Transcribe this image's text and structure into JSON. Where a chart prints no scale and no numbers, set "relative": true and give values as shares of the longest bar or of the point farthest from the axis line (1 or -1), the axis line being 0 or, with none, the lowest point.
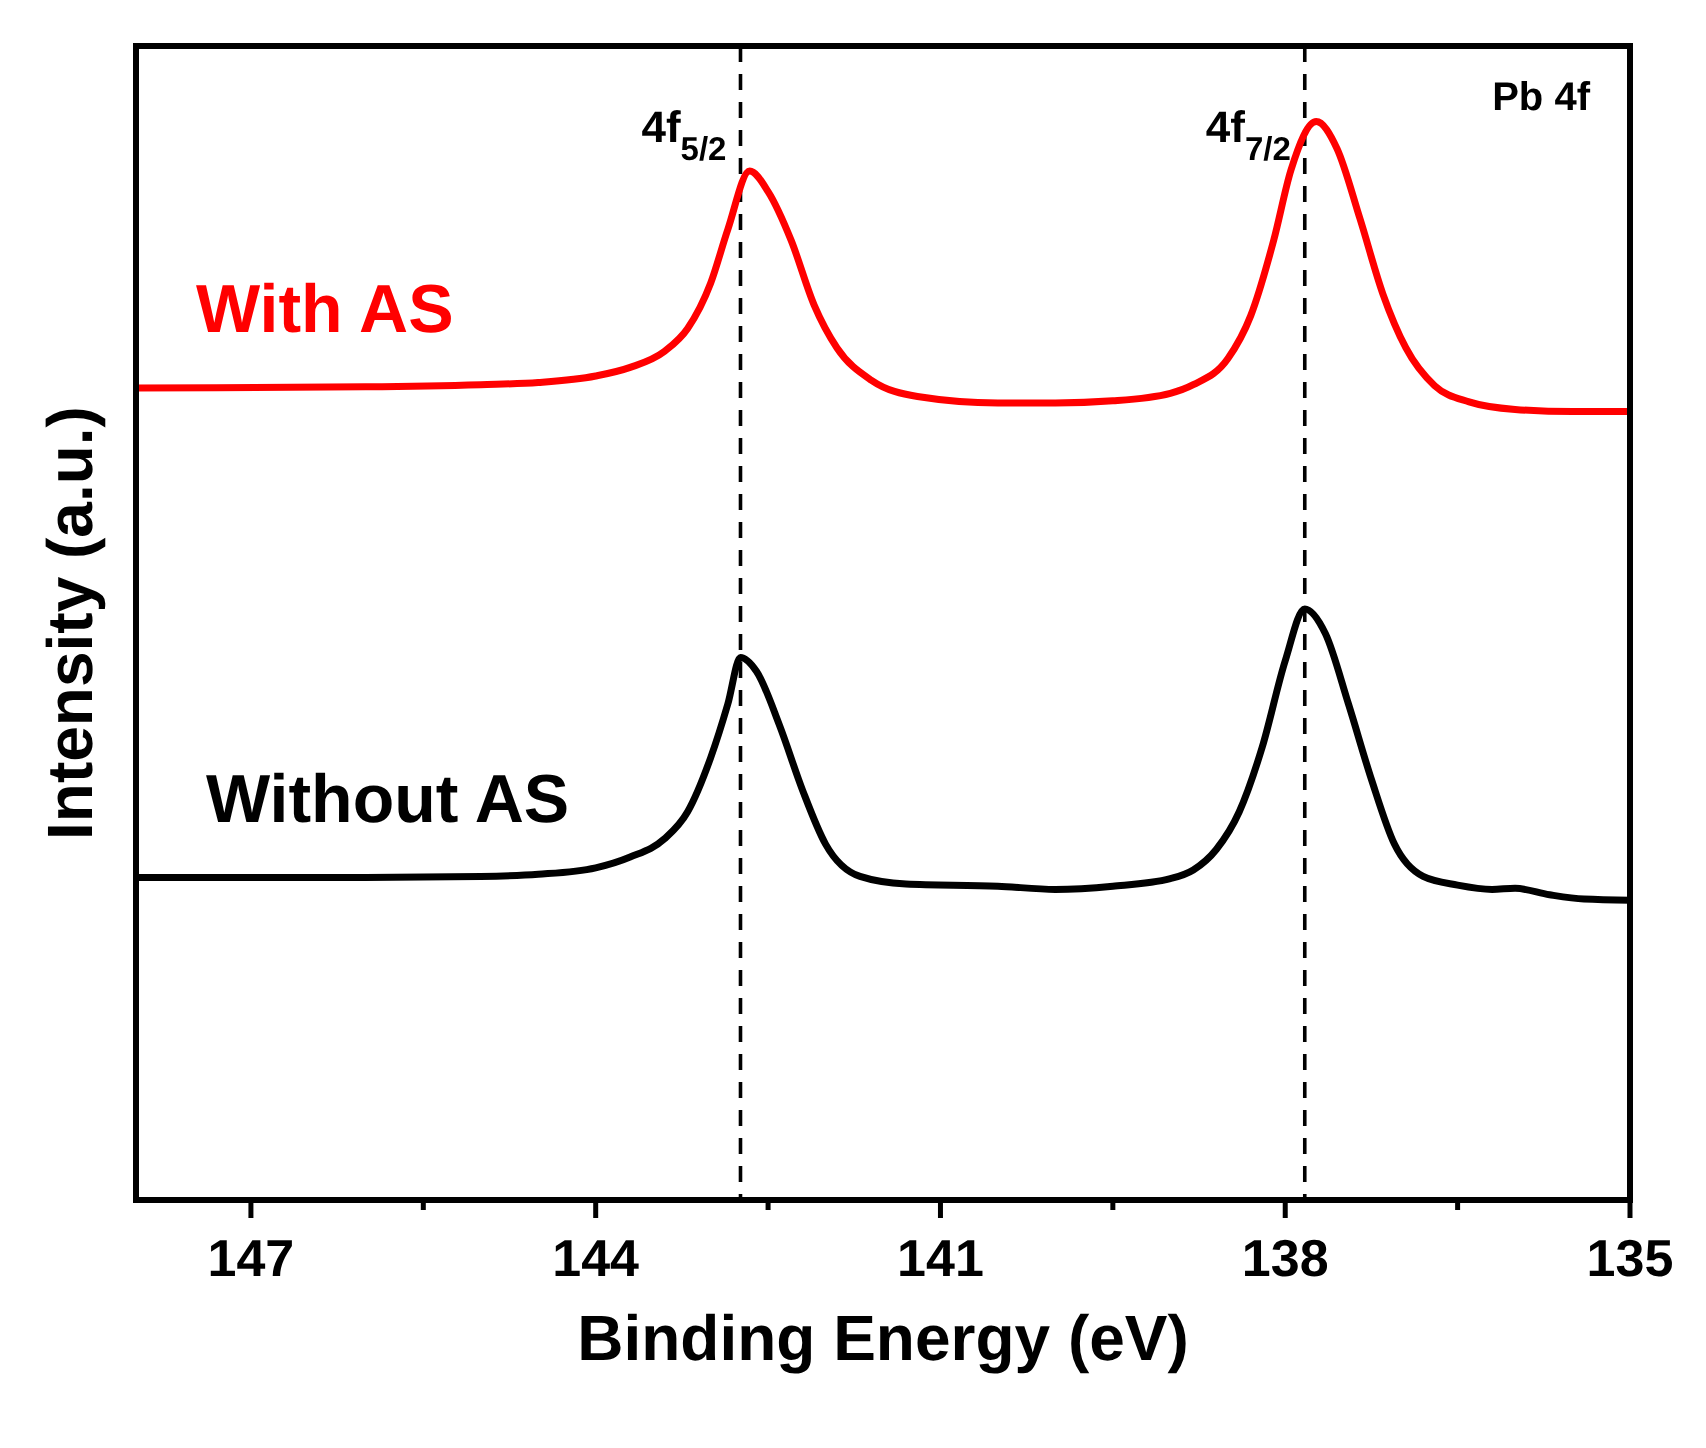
{
  "chart_data": {
    "type": "line",
    "relative": true,
    "xlabel": "Binding Energy (eV)",
    "ylabel": "Intensity (a.u.)",
    "xlim": [
      148,
      135
    ],
    "xticks": [
      147,
      {
        "value": 145.5,
        "label": null
      },
      144,
      {
        "value": 142.5,
        "label": null
      },
      141,
      {
        "value": 139.5,
        "label": null
      },
      138,
      {
        "value": 136.5,
        "label": null
      },
      135
    ],
    "legend": false,
    "grid": false,
    "line_style": "solid",
    "marker": "none",
    "annotations": [
      "Pb 4f"
    ],
    "ref_lines": [
      {
        "axis": "x",
        "value": 142.74,
        "label": "4f$_{5/2}$",
        "color": "#000000",
        "line_style": "dashed"
      },
      {
        "axis": "x",
        "value": 137.83,
        "label": "4f$_{7/2}$",
        "color": "#000000",
        "line_style": "dashed"
      }
    ],
    "series": [
      {
        "name": "With AS",
        "color": "#ff0000",
        "x": [
          148,
          146,
          145,
          144.5,
          144,
          143.7,
          143.4,
          143.2,
          143.0,
          142.85,
          142.66,
          142.5,
          142.3,
          142.1,
          141.9,
          141.6,
          141.2,
          140.5,
          140,
          139.5,
          139,
          138.8,
          138.5,
          138.3,
          138.1,
          137.95,
          137.73,
          137.55,
          137.35,
          137.15,
          136.95,
          136.7,
          136.4,
          136,
          135.5,
          135
        ],
        "values": [
          0.753,
          0.754,
          0.756,
          0.758,
          0.764,
          0.772,
          0.787,
          0.808,
          0.85,
          0.9,
          0.954,
          0.935,
          0.89,
          0.83,
          0.79,
          0.76,
          0.745,
          0.739,
          0.739,
          0.741,
          0.748,
          0.756,
          0.78,
          0.82,
          0.89,
          0.955,
          1.0,
          0.975,
          0.91,
          0.84,
          0.79,
          0.755,
          0.74,
          0.733,
          0.731,
          0.731
        ]
      },
      {
        "name": "Without AS",
        "color": "#000000",
        "x": [
          148,
          146,
          145,
          144.5,
          144,
          143.7,
          143.4,
          143.2,
          143.0,
          142.85,
          142.74,
          142.6,
          142.4,
          142.2,
          142.0,
          141.7,
          141.3,
          140.5,
          140,
          139.5,
          139,
          138.8,
          138.6,
          138.4,
          138.2,
          138.0,
          137.83,
          137.65,
          137.45,
          137.25,
          137.05,
          136.8,
          136.5,
          136.2,
          136,
          135.7,
          135.4,
          135
        ],
        "values": [
          0.299,
          0.299,
          0.3,
          0.302,
          0.308,
          0.318,
          0.335,
          0.36,
          0.41,
          0.46,
          0.503,
          0.49,
          0.44,
          0.38,
          0.33,
          0.3,
          0.293,
          0.291,
          0.288,
          0.291,
          0.298,
          0.306,
          0.325,
          0.36,
          0.42,
          0.5,
          0.548,
          0.525,
          0.46,
          0.39,
          0.33,
          0.3,
          0.292,
          0.288,
          0.289,
          0.283,
          0.279,
          0.278
        ]
      }
    ]
  }
}
